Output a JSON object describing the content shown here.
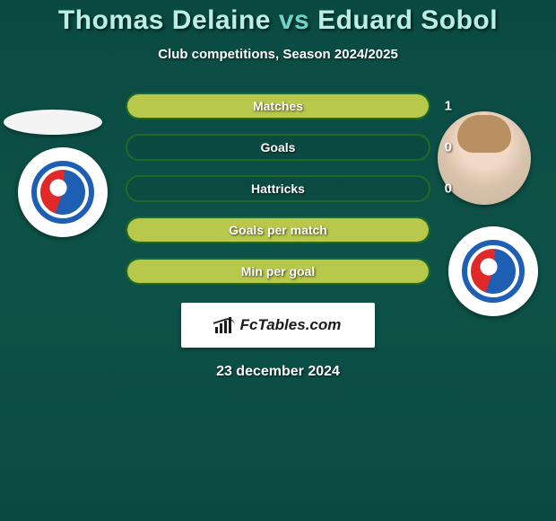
{
  "title": {
    "player1": "Thomas Delaine",
    "vs": "vs",
    "player2": "Eduard Sobol"
  },
  "subtitle": "Club competitions, Season 2024/2025",
  "rows": [
    {
      "label": "Matches",
      "left_pct": 0,
      "right_pct": 100,
      "right_val": "1"
    },
    {
      "label": "Goals",
      "left_pct": 0,
      "right_pct": 0,
      "right_val": "0"
    },
    {
      "label": "Hattricks",
      "left_pct": 0,
      "right_pct": 0,
      "right_val": "0"
    },
    {
      "label": "Goals per match",
      "left_pct": 100,
      "right_pct": 0,
      "right_val": ""
    },
    {
      "label": "Min per goal",
      "left_pct": 100,
      "right_pct": 0,
      "right_val": ""
    }
  ],
  "logo_text": "FcTables.com",
  "date": "23 december 2024",
  "colors": {
    "bar_fill": "#b7c84a",
    "bar_border": "#1f6b26",
    "title_accent": "#6fd4c8",
    "title_name": "#b9efe6"
  }
}
